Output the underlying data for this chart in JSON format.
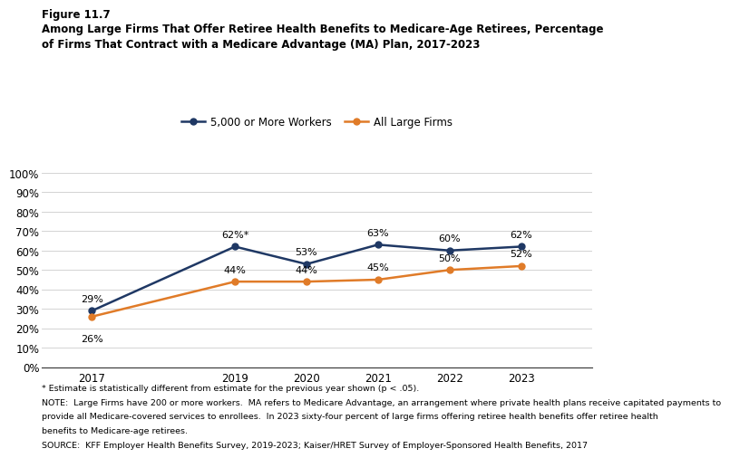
{
  "years": [
    2017,
    2019,
    2020,
    2021,
    2022,
    2023
  ],
  "series_5000": [
    29,
    62,
    53,
    63,
    60,
    62
  ],
  "series_all": [
    26,
    44,
    44,
    45,
    50,
    52
  ],
  "labels_5000": [
    "29%",
    "62%*",
    "53%",
    "63%",
    "60%",
    "62%"
  ],
  "labels_all": [
    "26%",
    "44%",
    "44%",
    "45%",
    "50%",
    "52%"
  ],
  "color_5000": "#1f3864",
  "color_all": "#e07b28",
  "legend_5000": "5,000 or More Workers",
  "legend_all": "All Large Firms",
  "ylim": [
    0,
    110
  ],
  "yticks": [
    0,
    10,
    20,
    30,
    40,
    50,
    60,
    70,
    80,
    90,
    100
  ],
  "ytick_labels": [
    "0%",
    "10%",
    "20%",
    "30%",
    "40%",
    "50%",
    "60%",
    "70%",
    "80%",
    "90%",
    "100%"
  ],
  "figure_label": "Figure 11.7",
  "title_line1": "Among Large Firms That Offer Retiree Health Benefits to Medicare-Age Retirees, Percentage",
  "title_line2": "of Firms That Contract with a Medicare Advantage (MA) Plan, 2017-2023",
  "footnote1": "* Estimate is statistically different from estimate for the previous year shown (p < .05).",
  "footnote2": "NOTE:  Large Firms have 200 or more workers.  MA refers to Medicare Advantage, an arrangement where private health plans receive capitated payments to",
  "footnote3": "provide all Medicare-covered services to enrollees.  In 2023 sixty-four percent of large firms offering retiree health benefits offer retiree health",
  "footnote4": "benefits to Medicare-age retirees.",
  "footnote5": "SOURCE:  KFF Employer Health Benefits Survey, 2019-2023; Kaiser/HRET Survey of Employer-Sponsored Health Benefits, 2017"
}
